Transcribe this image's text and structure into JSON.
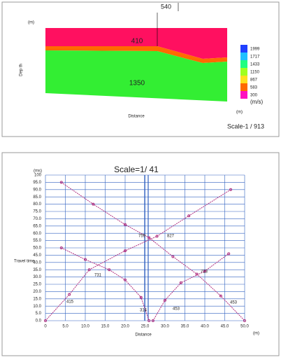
{
  "section": {
    "shot_label": "540",
    "depth_unit": "(m)",
    "depth_label": "Dep th",
    "layer_labels": [
      "410",
      "1350"
    ],
    "legend_values": [
      "1999",
      "1717",
      "1433",
      "1150",
      "867",
      "583",
      "300"
    ],
    "legend_unit": "(m/s)",
    "x_label": "Distance",
    "x_unit": "(m)",
    "scale": "Scale-1 / 913"
  },
  "chart_data": {
    "type": "traveltime",
    "title": "Scale=1/ 41",
    "y_unit": "(ms)",
    "y_label": "Travel time",
    "x_label": "Distance",
    "x_unit": "(m)",
    "xlim": [
      0,
      50
    ],
    "ylim": [
      0,
      100
    ],
    "xticks": [
      {
        "value": 0,
        "label": "0"
      },
      {
        "value": 5,
        "label": "5.0"
      },
      {
        "value": 10,
        "label": "10.0"
      },
      {
        "value": 15,
        "label": "15.0"
      },
      {
        "value": 20,
        "label": "20.0"
      },
      {
        "value": 25,
        "label": "25.0"
      },
      {
        "value": 30,
        "label": "30.0"
      },
      {
        "value": 35,
        "label": "35.0"
      },
      {
        "value": 40,
        "label": "40.0"
      },
      {
        "value": 45,
        "label": "45.0"
      },
      {
        "value": 50,
        "label": "50.0"
      }
    ],
    "yticks": [
      {
        "value": 0,
        "label": "0.0"
      },
      {
        "value": 5,
        "label": "5.0"
      },
      {
        "value": 10,
        "label": "10.0"
      },
      {
        "value": 15,
        "label": "15.0"
      },
      {
        "value": 20,
        "label": "20.0"
      },
      {
        "value": 25,
        "label": "25.0"
      },
      {
        "value": 30,
        "label": "30.0"
      },
      {
        "value": 35,
        "label": "35.0"
      },
      {
        "value": 40,
        "label": "40.0"
      },
      {
        "value": 45,
        "label": "45.0"
      },
      {
        "value": 50,
        "label": "50.0"
      },
      {
        "value": 55,
        "label": "55.0"
      },
      {
        "value": 60,
        "label": "60.0"
      },
      {
        "value": 65,
        "label": "65.0"
      },
      {
        "value": 70,
        "label": "70.0"
      },
      {
        "value": 75,
        "label": "75.0"
      },
      {
        "value": 80,
        "label": "80.0"
      },
      {
        "value": 85,
        "label": "85.0"
      },
      {
        "value": 90,
        "label": "90.0"
      },
      {
        "value": 95,
        "label": "95.0"
      },
      {
        "value": 100,
        "label": "100"
      }
    ],
    "grid": true,
    "color": "#b03080",
    "series": [
      {
        "x": [
          0,
          6,
          11,
          20,
          28,
          36,
          46.5
        ],
        "values": [
          0,
          18,
          35,
          48,
          58,
          72,
          90
        ]
      },
      {
        "x": [
          4,
          12,
          20,
          26,
          32,
          38,
          44,
          50
        ],
        "values": [
          95,
          80,
          66,
          57,
          44,
          32,
          17,
          0
        ]
      },
      {
        "x": [
          4,
          10,
          16,
          20,
          24,
          26
        ],
        "values": [
          50,
          42,
          35,
          28,
          16,
          0
        ]
      },
      {
        "x": [
          27,
          30,
          34,
          40,
          46
        ],
        "values": [
          0,
          14,
          26,
          34,
          46
        ]
      }
    ],
    "annotations": [
      "415",
      "731",
      "314",
      "453",
      "759",
      "827",
      "713",
      "453"
    ]
  }
}
